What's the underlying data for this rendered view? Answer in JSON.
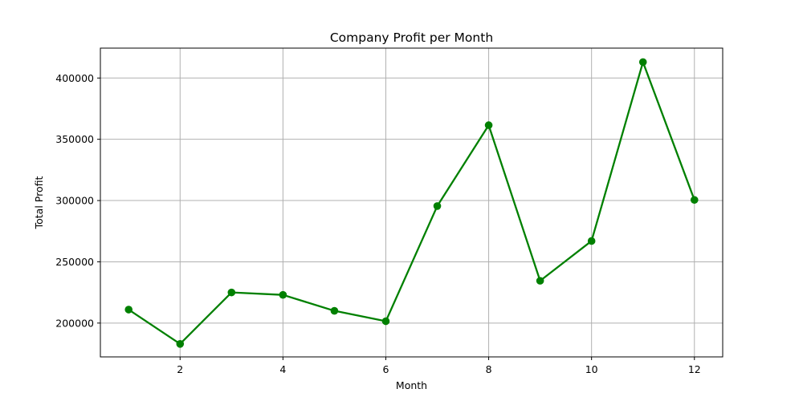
{
  "chart_data": {
    "type": "line",
    "title": "Company Profit per Month",
    "xlabel": "Month",
    "ylabel": "Total Profit",
    "x": [
      1,
      2,
      3,
      4,
      5,
      6,
      7,
      8,
      9,
      10,
      11,
      12
    ],
    "series": [
      {
        "values": [
          211000,
          183000,
          225000,
          223000,
          210000,
          201500,
          295500,
          361500,
          234500,
          267000,
          413000,
          300500
        ],
        "color": "#008000",
        "marker": "circle"
      }
    ],
    "xlim": [
      0.45,
      12.55
    ],
    "ylim": [
      172400,
      424400
    ],
    "xticks": [
      2,
      4,
      6,
      8,
      10,
      12
    ],
    "yticks": [
      200000,
      250000,
      300000,
      350000,
      400000
    ],
    "grid": true,
    "grid_color": "#b0b0b0",
    "legend": false
  }
}
